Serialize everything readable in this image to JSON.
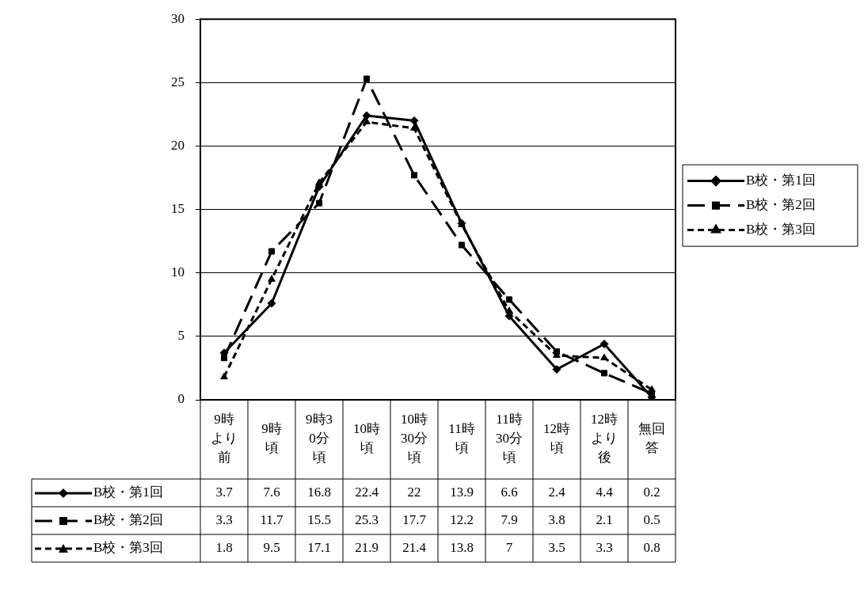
{
  "chart_data": {
    "type": "line",
    "categories": [
      "9時より前",
      "9時頃",
      "9時30分頃",
      "10時頃",
      "10時30分頃",
      "11時頃",
      "11時30分頃",
      "12時頃",
      "12時より後",
      "無回答"
    ],
    "series": [
      {
        "name": "B校・第1回",
        "color": "#000000",
        "marker": "diamond",
        "line_style": "solid",
        "values": [
          3.7,
          7.6,
          16.8,
          22.4,
          22,
          13.9,
          6.6,
          2.4,
          4.4,
          0.2
        ]
      },
      {
        "name": "B校・第2回",
        "color": "#000000",
        "marker": "square",
        "line_style": "dashed",
        "values": [
          3.3,
          11.7,
          15.5,
          25.3,
          17.7,
          12.2,
          7.9,
          3.8,
          2.1,
          0.5
        ]
      },
      {
        "name": "B校・第3回",
        "color": "#000000",
        "marker": "triangle",
        "line_style": "dotted",
        "values": [
          1.8,
          9.5,
          17.1,
          21.9,
          21.4,
          13.8,
          7,
          3.5,
          3.3,
          0.8
        ]
      }
    ],
    "ylim": [
      0,
      30
    ],
    "yticks": [
      0,
      5,
      10,
      15,
      20,
      25,
      30
    ],
    "grid": "y",
    "legend": "right",
    "data_labels": true
  }
}
